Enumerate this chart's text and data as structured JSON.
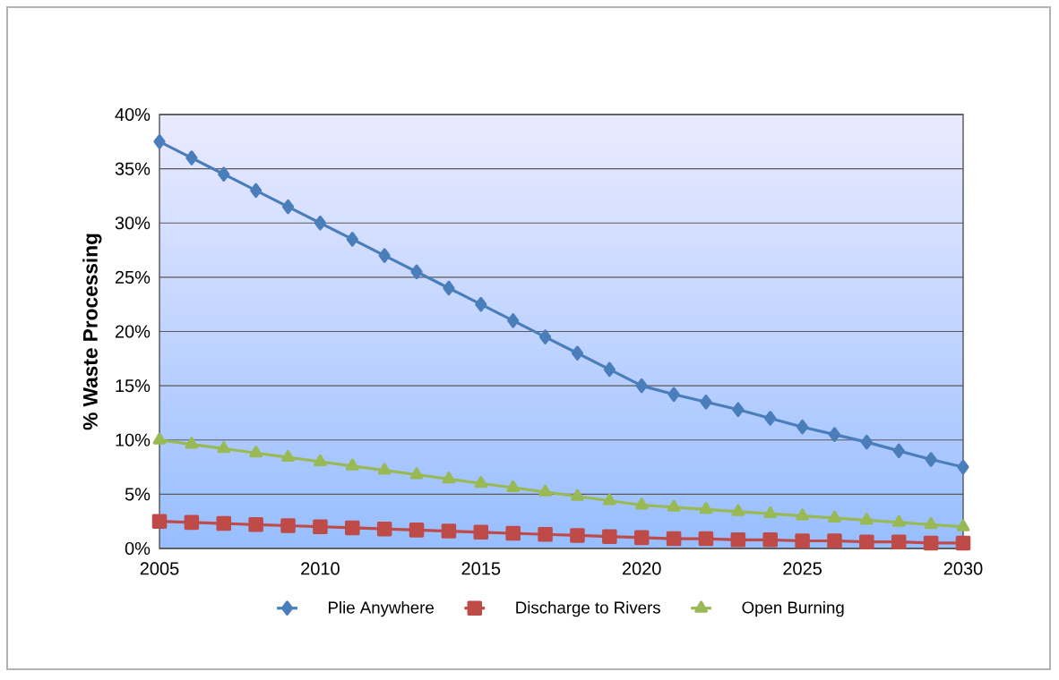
{
  "chart_data": {
    "type": "line",
    "ylabel": "% Waste Processing",
    "x": [
      2005,
      2006,
      2007,
      2008,
      2009,
      2010,
      2011,
      2012,
      2013,
      2014,
      2015,
      2016,
      2017,
      2018,
      2019,
      2020,
      2021,
      2022,
      2023,
      2024,
      2025,
      2026,
      2027,
      2028,
      2029,
      2030
    ],
    "series": [
      {
        "name": "Plie Anywhere",
        "color": "#4a7ebb",
        "marker": "diamond",
        "values": [
          37.5,
          36,
          34.5,
          33,
          31.5,
          30,
          28.5,
          27,
          25.5,
          24,
          22.5,
          21,
          19.5,
          18,
          16.5,
          15,
          14.2,
          13.5,
          12.8,
          12,
          11.2,
          10.5,
          9.8,
          9,
          8.2,
          7.5
        ]
      },
      {
        "name": "Discharge to Rivers",
        "color": "#be4b48",
        "marker": "square",
        "values": [
          2.5,
          2.4,
          2.3,
          2.2,
          2.1,
          2,
          1.9,
          1.8,
          1.7,
          1.6,
          1.5,
          1.4,
          1.3,
          1.2,
          1.1,
          1,
          0.9,
          0.9,
          0.8,
          0.8,
          0.7,
          0.7,
          0.6,
          0.6,
          0.5,
          0.5
        ]
      },
      {
        "name": "Open Burning",
        "color": "#98b954",
        "marker": "triangle",
        "values": [
          10,
          9.6,
          9.2,
          8.8,
          8.4,
          8,
          7.6,
          7.2,
          6.8,
          6.4,
          6,
          5.6,
          5.2,
          4.8,
          4.4,
          4,
          3.8,
          3.6,
          3.4,
          3.2,
          3,
          2.8,
          2.6,
          2.4,
          2.2,
          2
        ]
      }
    ],
    "xlim": [
      2005,
      2030
    ],
    "xticks": [
      2005,
      2010,
      2015,
      2020,
      2025,
      2030
    ],
    "ylim": [
      0,
      40
    ],
    "yticks": [
      {
        "value": 0,
        "label": "0%"
      },
      {
        "value": 5,
        "label": "5%"
      },
      {
        "value": 10,
        "label": "10%"
      },
      {
        "value": 15,
        "label": "15%"
      },
      {
        "value": 20,
        "label": "20%"
      },
      {
        "value": 25,
        "label": "25%"
      },
      {
        "value": 30,
        "label": "30%"
      },
      {
        "value": 35,
        "label": "35%"
      },
      {
        "value": 40,
        "label": "40%"
      }
    ],
    "grid": "y",
    "legend": "bottom",
    "line_style": "solid"
  }
}
